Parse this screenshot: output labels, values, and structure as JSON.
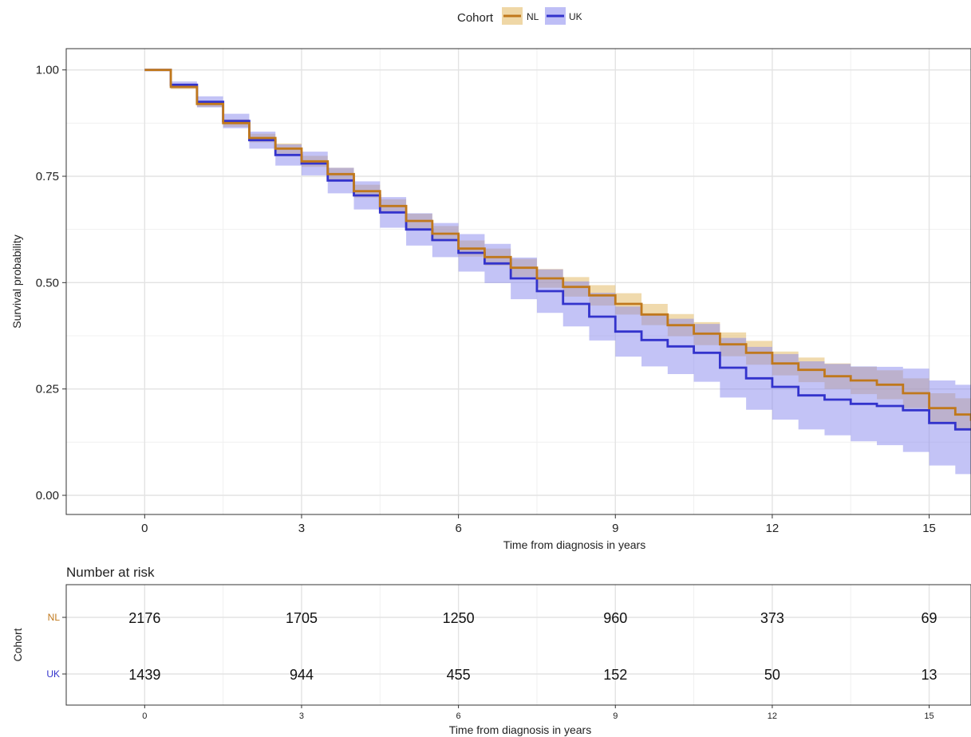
{
  "chart_data": [
    {
      "type": "line",
      "subtype": "kaplan-meier-step",
      "xlabel": "Time from diagnosis in years",
      "ylabel": "Survival probability",
      "xlim": [
        -1.5,
        15.8
      ],
      "ylim": [
        -0.045,
        1.05
      ],
      "xticks": [
        0,
        3,
        6,
        9,
        12,
        15
      ],
      "xtick_labels": [
        "0",
        "3",
        "6",
        "9",
        "12",
        "15"
      ],
      "yticks": [
        0,
        0.25,
        0.5,
        0.75,
        1.0
      ],
      "ytick_labels": [
        "0.00",
        "0.25",
        "0.50",
        "0.75",
        "1.00"
      ],
      "grid": true,
      "confidence_bands": true,
      "legend": {
        "title": "Cohort",
        "placement": "top-center",
        "entries": [
          "NL",
          "UK"
        ]
      },
      "series": [
        {
          "name": "NL",
          "color": "#c0781c",
          "band_color": "#e2b65c",
          "x": [
            0,
            0.5,
            1,
            1.5,
            2,
            2.5,
            3,
            3.5,
            4,
            4.5,
            5,
            5.5,
            6,
            6.5,
            7,
            7.5,
            8,
            8.5,
            9,
            9.5,
            10,
            10.5,
            11,
            11.5,
            12,
            12.5,
            13,
            13.5,
            14,
            14.5,
            15,
            15.5,
            15.8
          ],
          "y": [
            1.0,
            0.96,
            0.92,
            0.875,
            0.84,
            0.815,
            0.785,
            0.755,
            0.715,
            0.68,
            0.645,
            0.615,
            0.58,
            0.56,
            0.535,
            0.51,
            0.49,
            0.47,
            0.45,
            0.425,
            0.4,
            0.38,
            0.355,
            0.335,
            0.31,
            0.295,
            0.28,
            0.27,
            0.26,
            0.24,
            0.205,
            0.19,
            0.175
          ],
          "lower": [
            1.0,
            0.955,
            0.913,
            0.866,
            0.83,
            0.803,
            0.772,
            0.74,
            0.7,
            0.664,
            0.628,
            0.597,
            0.561,
            0.54,
            0.514,
            0.488,
            0.467,
            0.446,
            0.425,
            0.4,
            0.374,
            0.353,
            0.327,
            0.307,
            0.282,
            0.266,
            0.25,
            0.238,
            0.226,
            0.205,
            0.17,
            0.152,
            0.137
          ],
          "upper": [
            1.0,
            0.965,
            0.927,
            0.884,
            0.85,
            0.827,
            0.798,
            0.77,
            0.73,
            0.696,
            0.662,
            0.633,
            0.599,
            0.58,
            0.556,
            0.532,
            0.513,
            0.494,
            0.475,
            0.45,
            0.426,
            0.407,
            0.383,
            0.363,
            0.338,
            0.324,
            0.31,
            0.302,
            0.294,
            0.275,
            0.24,
            0.228,
            0.213
          ]
        },
        {
          "name": "UK",
          "color": "#3333cc",
          "band_color": "#8888ee",
          "x": [
            0,
            0.5,
            1,
            1.5,
            2,
            2.5,
            3,
            3.5,
            4,
            4.5,
            5,
            5.5,
            6,
            6.5,
            7,
            7.5,
            8,
            8.5,
            9,
            9.5,
            10,
            10.5,
            11,
            11.5,
            12,
            12.5,
            13,
            13.5,
            14,
            14.5,
            15,
            15.5,
            15.8
          ],
          "y": [
            1.0,
            0.965,
            0.925,
            0.88,
            0.835,
            0.8,
            0.78,
            0.74,
            0.705,
            0.665,
            0.625,
            0.6,
            0.57,
            0.545,
            0.51,
            0.48,
            0.45,
            0.42,
            0.385,
            0.365,
            0.35,
            0.335,
            0.3,
            0.275,
            0.255,
            0.235,
            0.225,
            0.215,
            0.21,
            0.2,
            0.17,
            0.155,
            0.155
          ],
          "lower": [
            1.0,
            0.957,
            0.912,
            0.863,
            0.815,
            0.775,
            0.752,
            0.71,
            0.672,
            0.629,
            0.587,
            0.56,
            0.526,
            0.499,
            0.461,
            0.429,
            0.397,
            0.364,
            0.326,
            0.303,
            0.285,
            0.267,
            0.23,
            0.201,
            0.178,
            0.155,
            0.141,
            0.127,
            0.118,
            0.102,
            0.07,
            0.05,
            0.045
          ],
          "upper": [
            1.0,
            0.973,
            0.938,
            0.897,
            0.855,
            0.825,
            0.808,
            0.77,
            0.738,
            0.701,
            0.663,
            0.64,
            0.614,
            0.591,
            0.559,
            0.531,
            0.503,
            0.476,
            0.444,
            0.427,
            0.415,
            0.403,
            0.37,
            0.349,
            0.332,
            0.315,
            0.309,
            0.303,
            0.302,
            0.298,
            0.27,
            0.26,
            0.265
          ]
        }
      ]
    },
    {
      "type": "table",
      "title": "Number at risk",
      "xlabel": "Time from diagnosis in years",
      "ylabel": "Cohort",
      "xticks": [
        0,
        3,
        6,
        9,
        12,
        15
      ],
      "xtick_labels": [
        "0",
        "3",
        "6",
        "9",
        "12",
        "15"
      ],
      "rows": [
        {
          "name": "NL",
          "color": "#c0781c",
          "values": [
            "2176",
            "1705",
            "1250",
            "960",
            "373",
            "69"
          ]
        },
        {
          "name": "UK",
          "color": "#3333cc",
          "values": [
            "1439",
            "944",
            "455",
            "152",
            "50",
            "13"
          ]
        }
      ]
    }
  ]
}
